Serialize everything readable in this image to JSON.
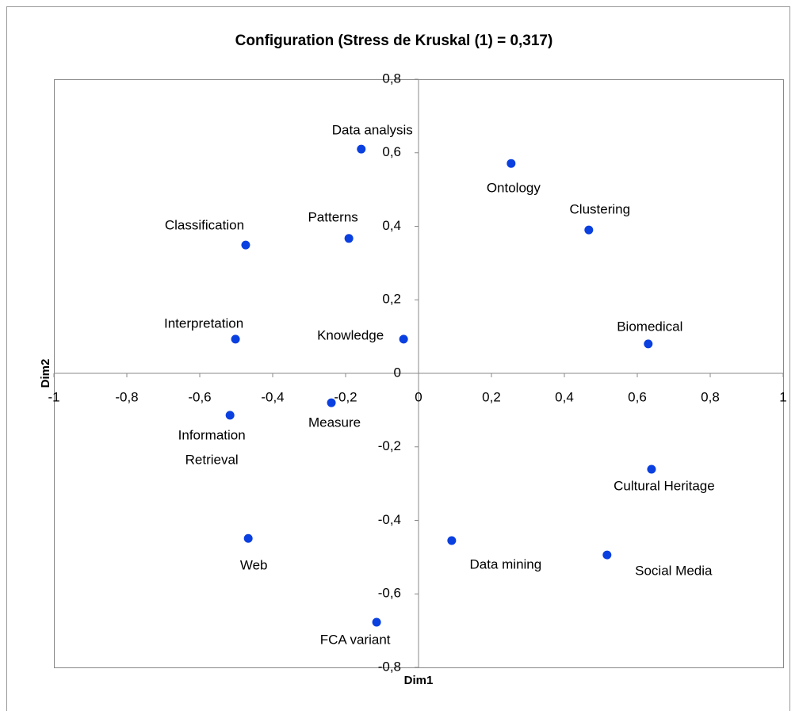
{
  "chart_data": {
    "type": "scatter",
    "title": "Configuration (Stress de Kruskal (1) = 0,317)",
    "x_label": "Dim1",
    "y_label": "Dim2",
    "color": "#0a3fe0",
    "labels": [
      "Data analysis",
      "Ontology",
      "Clustering",
      "Patterns",
      "Classification",
      "Interpretation",
      "Knowledge",
      "Biomedical",
      "Measure",
      [
        "Information",
        "Retrieval"
      ],
      "Cultural Heritage",
      "Web",
      "Data mining",
      "Social Media",
      "FCA variant"
    ],
    "x": [
      -0.157,
      0.254,
      0.467,
      -0.191,
      -0.474,
      -0.502,
      -0.041,
      0.63,
      -0.239,
      -0.517,
      0.639,
      -0.467,
      0.091,
      0.517,
      -0.115
    ],
    "values": [
      0.61,
      0.571,
      0.39,
      0.367,
      0.349,
      0.093,
      0.093,
      0.08,
      -0.08,
      -0.114,
      -0.261,
      -0.449,
      -0.455,
      -0.494,
      -0.677
    ],
    "xlim": [
      -1,
      1
    ],
    "xticks": [
      -1,
      {
        "value": -0.8,
        "label": "-0,8"
      },
      {
        "value": -0.6,
        "label": "-0,6"
      },
      {
        "value": -0.4,
        "label": "-0,4"
      },
      {
        "value": -0.2,
        "label": "-0,2"
      },
      0,
      {
        "value": 0.2,
        "label": "0,2"
      },
      {
        "value": 0.4,
        "label": "0,4"
      },
      {
        "value": 0.6,
        "label": "0,6"
      },
      {
        "value": 0.8,
        "label": "0,8"
      },
      1
    ],
    "ylim": [
      -0.8,
      0.8
    ],
    "yticks": [
      {
        "value": -0.8,
        "label": "-0,8"
      },
      {
        "value": -0.6,
        "label": "-0,6"
      },
      {
        "value": -0.4,
        "label": "-0,4"
      },
      {
        "value": -0.2,
        "label": "-0,2"
      },
      0,
      {
        "value": 0.2,
        "label": "0,2"
      },
      {
        "value": 0.4,
        "label": "0,4"
      },
      {
        "value": 0.6,
        "label": "0,6"
      },
      {
        "value": 0.8,
        "label": "0,8"
      }
    ]
  }
}
